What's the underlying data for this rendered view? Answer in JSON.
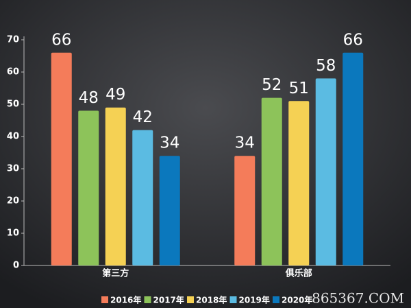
{
  "chart_data": {
    "type": "bar",
    "categories": [
      "第三方",
      "俱乐部"
    ],
    "series": [
      {
        "name": "2016年",
        "color": "#f47c5a",
        "values": [
          66,
          34
        ]
      },
      {
        "name": "2017年",
        "color": "#8dc35a",
        "values": [
          48,
          52
        ]
      },
      {
        "name": "2018年",
        "color": "#f5d154",
        "values": [
          49,
          51
        ]
      },
      {
        "name": "2019年",
        "color": "#5bbbe2",
        "values": [
          42,
          58
        ]
      },
      {
        "name": "2020年",
        "color": "#0b78bd",
        "values": [
          34,
          66
        ]
      }
    ],
    "ylim": [
      0,
      70
    ],
    "yticks": [
      0,
      10,
      20,
      30,
      40,
      50,
      60,
      70
    ],
    "legend": "bottom",
    "watermark": "865367.COM"
  }
}
